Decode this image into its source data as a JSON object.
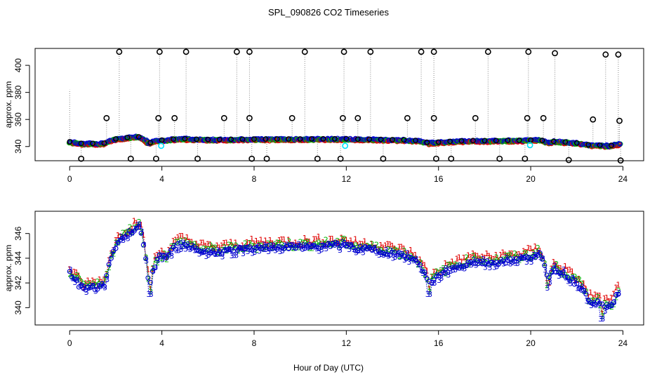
{
  "title": "SPL_090826  CO2 Timeseries",
  "colors": {
    "series_1": "#e00000",
    "series_2": "#00b000",
    "series_3": "#0000d0",
    "raw": "#000000",
    "cyan": "#00e5ff"
  },
  "chart_data": [
    {
      "type": "scatter",
      "panel": "top",
      "title": "",
      "xlabel": "",
      "ylabel": "approx. ppm",
      "xlim": [
        -1.5,
        24.9
      ],
      "ylim": [
        329.5,
        412.5
      ],
      "xticks": [
        0,
        4,
        8,
        12,
        16,
        20,
        24
      ],
      "yticks": [
        340,
        360,
        380,
        400
      ],
      "spike_at_zero": 382,
      "high_outliers": [
        {
          "x": 2.15,
          "y": 410
        },
        {
          "x": 3.9,
          "y": 410
        },
        {
          "x": 5.05,
          "y": 410
        },
        {
          "x": 7.25,
          "y": 410
        },
        {
          "x": 7.8,
          "y": 410
        },
        {
          "x": 10.2,
          "y": 410
        },
        {
          "x": 11.9,
          "y": 410
        },
        {
          "x": 13.05,
          "y": 410
        },
        {
          "x": 15.25,
          "y": 410
        },
        {
          "x": 15.8,
          "y": 410
        },
        {
          "x": 18.15,
          "y": 410
        },
        {
          "x": 19.9,
          "y": 410
        },
        {
          "x": 21.05,
          "y": 409
        },
        {
          "x": 23.25,
          "y": 408
        },
        {
          "x": 23.8,
          "y": 408
        }
      ],
      "mid_outliers": [
        {
          "x": 1.6,
          "y": 361
        },
        {
          "x": 3.85,
          "y": 361
        },
        {
          "x": 4.55,
          "y": 361
        },
        {
          "x": 6.7,
          "y": 361
        },
        {
          "x": 7.8,
          "y": 361
        },
        {
          "x": 9.65,
          "y": 361
        },
        {
          "x": 11.85,
          "y": 361
        },
        {
          "x": 12.5,
          "y": 361
        },
        {
          "x": 14.65,
          "y": 361
        },
        {
          "x": 15.8,
          "y": 361
        },
        {
          "x": 17.6,
          "y": 361
        },
        {
          "x": 19.85,
          "y": 361
        },
        {
          "x": 20.55,
          "y": 361
        },
        {
          "x": 22.7,
          "y": 360
        },
        {
          "x": 23.85,
          "y": 359
        }
      ],
      "low_outliers": [
        {
          "x": 0.5,
          "y": 331
        },
        {
          "x": 2.65,
          "y": 331
        },
        {
          "x": 3.75,
          "y": 331
        },
        {
          "x": 5.55,
          "y": 331
        },
        {
          "x": 7.9,
          "y": 331
        },
        {
          "x": 8.55,
          "y": 331
        },
        {
          "x": 10.75,
          "y": 331
        },
        {
          "x": 11.75,
          "y": 331
        },
        {
          "x": 13.6,
          "y": 331
        },
        {
          "x": 15.9,
          "y": 331
        },
        {
          "x": 16.55,
          "y": 331
        },
        {
          "x": 18.65,
          "y": 331
        },
        {
          "x": 19.75,
          "y": 331
        },
        {
          "x": 21.65,
          "y": 330
        },
        {
          "x": 23.9,
          "y": 329.7
        }
      ],
      "cyan_points": [
        {
          "x": 3.97,
          "y": 340.5
        },
        {
          "x": 11.95,
          "y": 340.5
        },
        {
          "x": 19.97,
          "y": 341
        }
      ]
    },
    {
      "type": "scatter",
      "panel": "bottom",
      "title": "",
      "xlabel": "Hour of Day (UTC)",
      "ylabel": "approx. ppm",
      "xlim": [
        -1.5,
        24.9
      ],
      "ylim": [
        338.6,
        347.8
      ],
      "xticks": [
        0,
        4,
        8,
        12,
        16,
        20,
        24
      ],
      "yticks": [
        340,
        342,
        344,
        346
      ],
      "series": [
        {
          "name": "1",
          "marker": "1",
          "offset": 0.25
        },
        {
          "name": "2",
          "marker": "2",
          "offset": 0.0
        },
        {
          "name": "3",
          "marker": "3",
          "offset": -0.25
        }
      ],
      "base_curve": [
        {
          "x": 0.0,
          "y": 343.0
        },
        {
          "x": 0.3,
          "y": 342.3
        },
        {
          "x": 0.6,
          "y": 341.6
        },
        {
          "x": 0.9,
          "y": 341.8
        },
        {
          "x": 1.2,
          "y": 341.8
        },
        {
          "x": 1.5,
          "y": 342.0
        },
        {
          "x": 1.8,
          "y": 344.3
        },
        {
          "x": 2.1,
          "y": 345.5
        },
        {
          "x": 2.4,
          "y": 346.0
        },
        {
          "x": 2.7,
          "y": 346.4
        },
        {
          "x": 2.95,
          "y": 346.9
        },
        {
          "x": 3.15,
          "y": 346.0
        },
        {
          "x": 3.3,
          "y": 344.0
        },
        {
          "x": 3.45,
          "y": 342.0
        },
        {
          "x": 3.65,
          "y": 343.5
        },
        {
          "x": 3.9,
          "y": 344.3
        },
        {
          "x": 4.2,
          "y": 344.2
        },
        {
          "x": 4.5,
          "y": 345.0
        },
        {
          "x": 4.8,
          "y": 345.3
        },
        {
          "x": 5.2,
          "y": 345.2
        },
        {
          "x": 5.6,
          "y": 344.8
        },
        {
          "x": 6.0,
          "y": 344.7
        },
        {
          "x": 6.5,
          "y": 344.7
        },
        {
          "x": 7.0,
          "y": 344.8
        },
        {
          "x": 7.5,
          "y": 344.9
        },
        {
          "x": 8.0,
          "y": 345.0
        },
        {
          "x": 9.0,
          "y": 345.1
        },
        {
          "x": 10.0,
          "y": 345.1
        },
        {
          "x": 11.0,
          "y": 345.2
        },
        {
          "x": 11.7,
          "y": 345.2
        },
        {
          "x": 12.0,
          "y": 345.3
        },
        {
          "x": 12.3,
          "y": 345.0
        },
        {
          "x": 13.0,
          "y": 344.9
        },
        {
          "x": 13.5,
          "y": 344.8
        },
        {
          "x": 14.0,
          "y": 344.6
        },
        {
          "x": 14.5,
          "y": 344.4
        },
        {
          "x": 15.0,
          "y": 344.0
        },
        {
          "x": 15.4,
          "y": 343.0
        },
        {
          "x": 15.6,
          "y": 342.2
        },
        {
          "x": 15.8,
          "y": 342.5
        },
        {
          "x": 16.2,
          "y": 343.0
        },
        {
          "x": 16.6,
          "y": 343.4
        },
        {
          "x": 17.0,
          "y": 343.6
        },
        {
          "x": 17.4,
          "y": 343.9
        },
        {
          "x": 17.8,
          "y": 343.9
        },
        {
          "x": 18.2,
          "y": 343.8
        },
        {
          "x": 18.6,
          "y": 343.9
        },
        {
          "x": 19.0,
          "y": 344.0
        },
        {
          "x": 19.5,
          "y": 344.1
        },
        {
          "x": 20.0,
          "y": 344.3
        },
        {
          "x": 20.4,
          "y": 344.6
        },
        {
          "x": 20.6,
          "y": 343.5
        },
        {
          "x": 20.75,
          "y": 342.3
        },
        {
          "x": 21.0,
          "y": 343.3
        },
        {
          "x": 21.4,
          "y": 343.0
        },
        {
          "x": 21.8,
          "y": 342.4
        },
        {
          "x": 22.2,
          "y": 341.8
        },
        {
          "x": 22.5,
          "y": 340.8
        },
        {
          "x": 22.9,
          "y": 340.6
        },
        {
          "x": 23.1,
          "y": 340.3
        },
        {
          "x": 23.4,
          "y": 340.2
        },
        {
          "x": 23.6,
          "y": 340.6
        },
        {
          "x": 23.75,
          "y": 341.4
        },
        {
          "x": 23.9,
          "y": 341.5
        }
      ],
      "dips": [
        {
          "x": 3.5,
          "y": 341.5
        },
        {
          "x": 15.6,
          "y": 341.5
        },
        {
          "x": 20.75,
          "y": 342.0
        },
        {
          "x": 23.1,
          "y": 339.5
        }
      ]
    }
  ]
}
